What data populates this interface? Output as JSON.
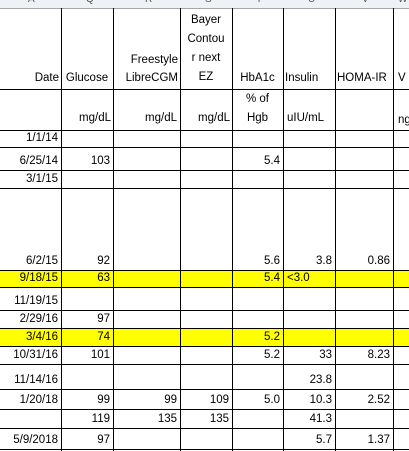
{
  "column_letters": [
    "A",
    "Q",
    "R",
    "S",
    "T",
    "U",
    "V",
    "W"
  ],
  "headers": {
    "date": "Date",
    "glucose": "Glucose",
    "freestyle": [
      "Freestyle",
      "LibreCGM"
    ],
    "bayer": [
      "Bayer",
      "Contou",
      "r next",
      "EZ"
    ],
    "hba1c": "HbA1c",
    "insulin": "Insulin",
    "homa": "HOMA-IR",
    "last": "V"
  },
  "units": {
    "glucose": "mg/dL",
    "freestyle": "mg/dL",
    "bayer": "mg/dL",
    "hba1c": [
      "% of",
      "Hgb"
    ],
    "insulin": "uIU/mL",
    "last": "ng"
  },
  "rows": [
    {
      "date": "1/1/14",
      "glucose": "",
      "freestyle": "",
      "bayer": "",
      "hba1c": "",
      "insulin": "",
      "homa": "",
      "highlight": false
    },
    {
      "date": "6/25/14",
      "glucose": "103",
      "freestyle": "",
      "bayer": "",
      "hba1c": "5.4",
      "insulin": "",
      "homa": "",
      "highlight": false
    },
    {
      "date": "3/1/15",
      "glucose": "",
      "freestyle": "",
      "bayer": "",
      "hba1c": "",
      "insulin": "",
      "homa": "",
      "highlight": false
    },
    {
      "date": "6/2/15",
      "glucose": "92",
      "freestyle": "",
      "bayer": "",
      "hba1c": "5.6",
      "insulin": "3.8",
      "homa": "0.86",
      "highlight": false
    },
    {
      "date": "9/18/15",
      "glucose": "63",
      "freestyle": "",
      "bayer": "",
      "hba1c": "5.4",
      "insulin": "<3.0",
      "homa": "",
      "highlight": true
    },
    {
      "date": "11/19/15",
      "glucose": "",
      "freestyle": "",
      "bayer": "",
      "hba1c": "",
      "insulin": "",
      "homa": "",
      "highlight": false
    },
    {
      "date": "2/29/16",
      "glucose": "97",
      "freestyle": "",
      "bayer": "",
      "hba1c": "",
      "insulin": "",
      "homa": "",
      "highlight": false
    },
    {
      "date": "3/4/16",
      "glucose": "74",
      "freestyle": "",
      "bayer": "",
      "hba1c": "5.2",
      "insulin": "",
      "homa": "",
      "highlight": true
    },
    {
      "date": "10/31/16",
      "glucose": "101",
      "freestyle": "",
      "bayer": "",
      "hba1c": "5.2",
      "insulin": "33",
      "homa": "8.23",
      "highlight": false
    },
    {
      "date": "11/14/16",
      "glucose": "",
      "freestyle": "",
      "bayer": "",
      "hba1c": "",
      "insulin": "23.8",
      "homa": "",
      "highlight": false
    },
    {
      "date": "1/20/18",
      "glucose": "99",
      "freestyle": "99",
      "bayer": "109",
      "hba1c": "5.0",
      "insulin": "10.3",
      "homa": "2.52",
      "highlight": false
    },
    {
      "date": "",
      "glucose": "119",
      "freestyle": "135",
      "bayer": "135",
      "hba1c": "",
      "insulin": "41.3",
      "homa": "",
      "highlight": false
    },
    {
      "date": "5/9/2018",
      "glucose": "97",
      "freestyle": "",
      "bayer": "",
      "hba1c": "",
      "insulin": "5.7",
      "homa": "1.37",
      "highlight": false
    }
  ],
  "colors": {
    "highlight": "#ffff00",
    "grid": "#d4d4d4",
    "border": "#000000"
  }
}
